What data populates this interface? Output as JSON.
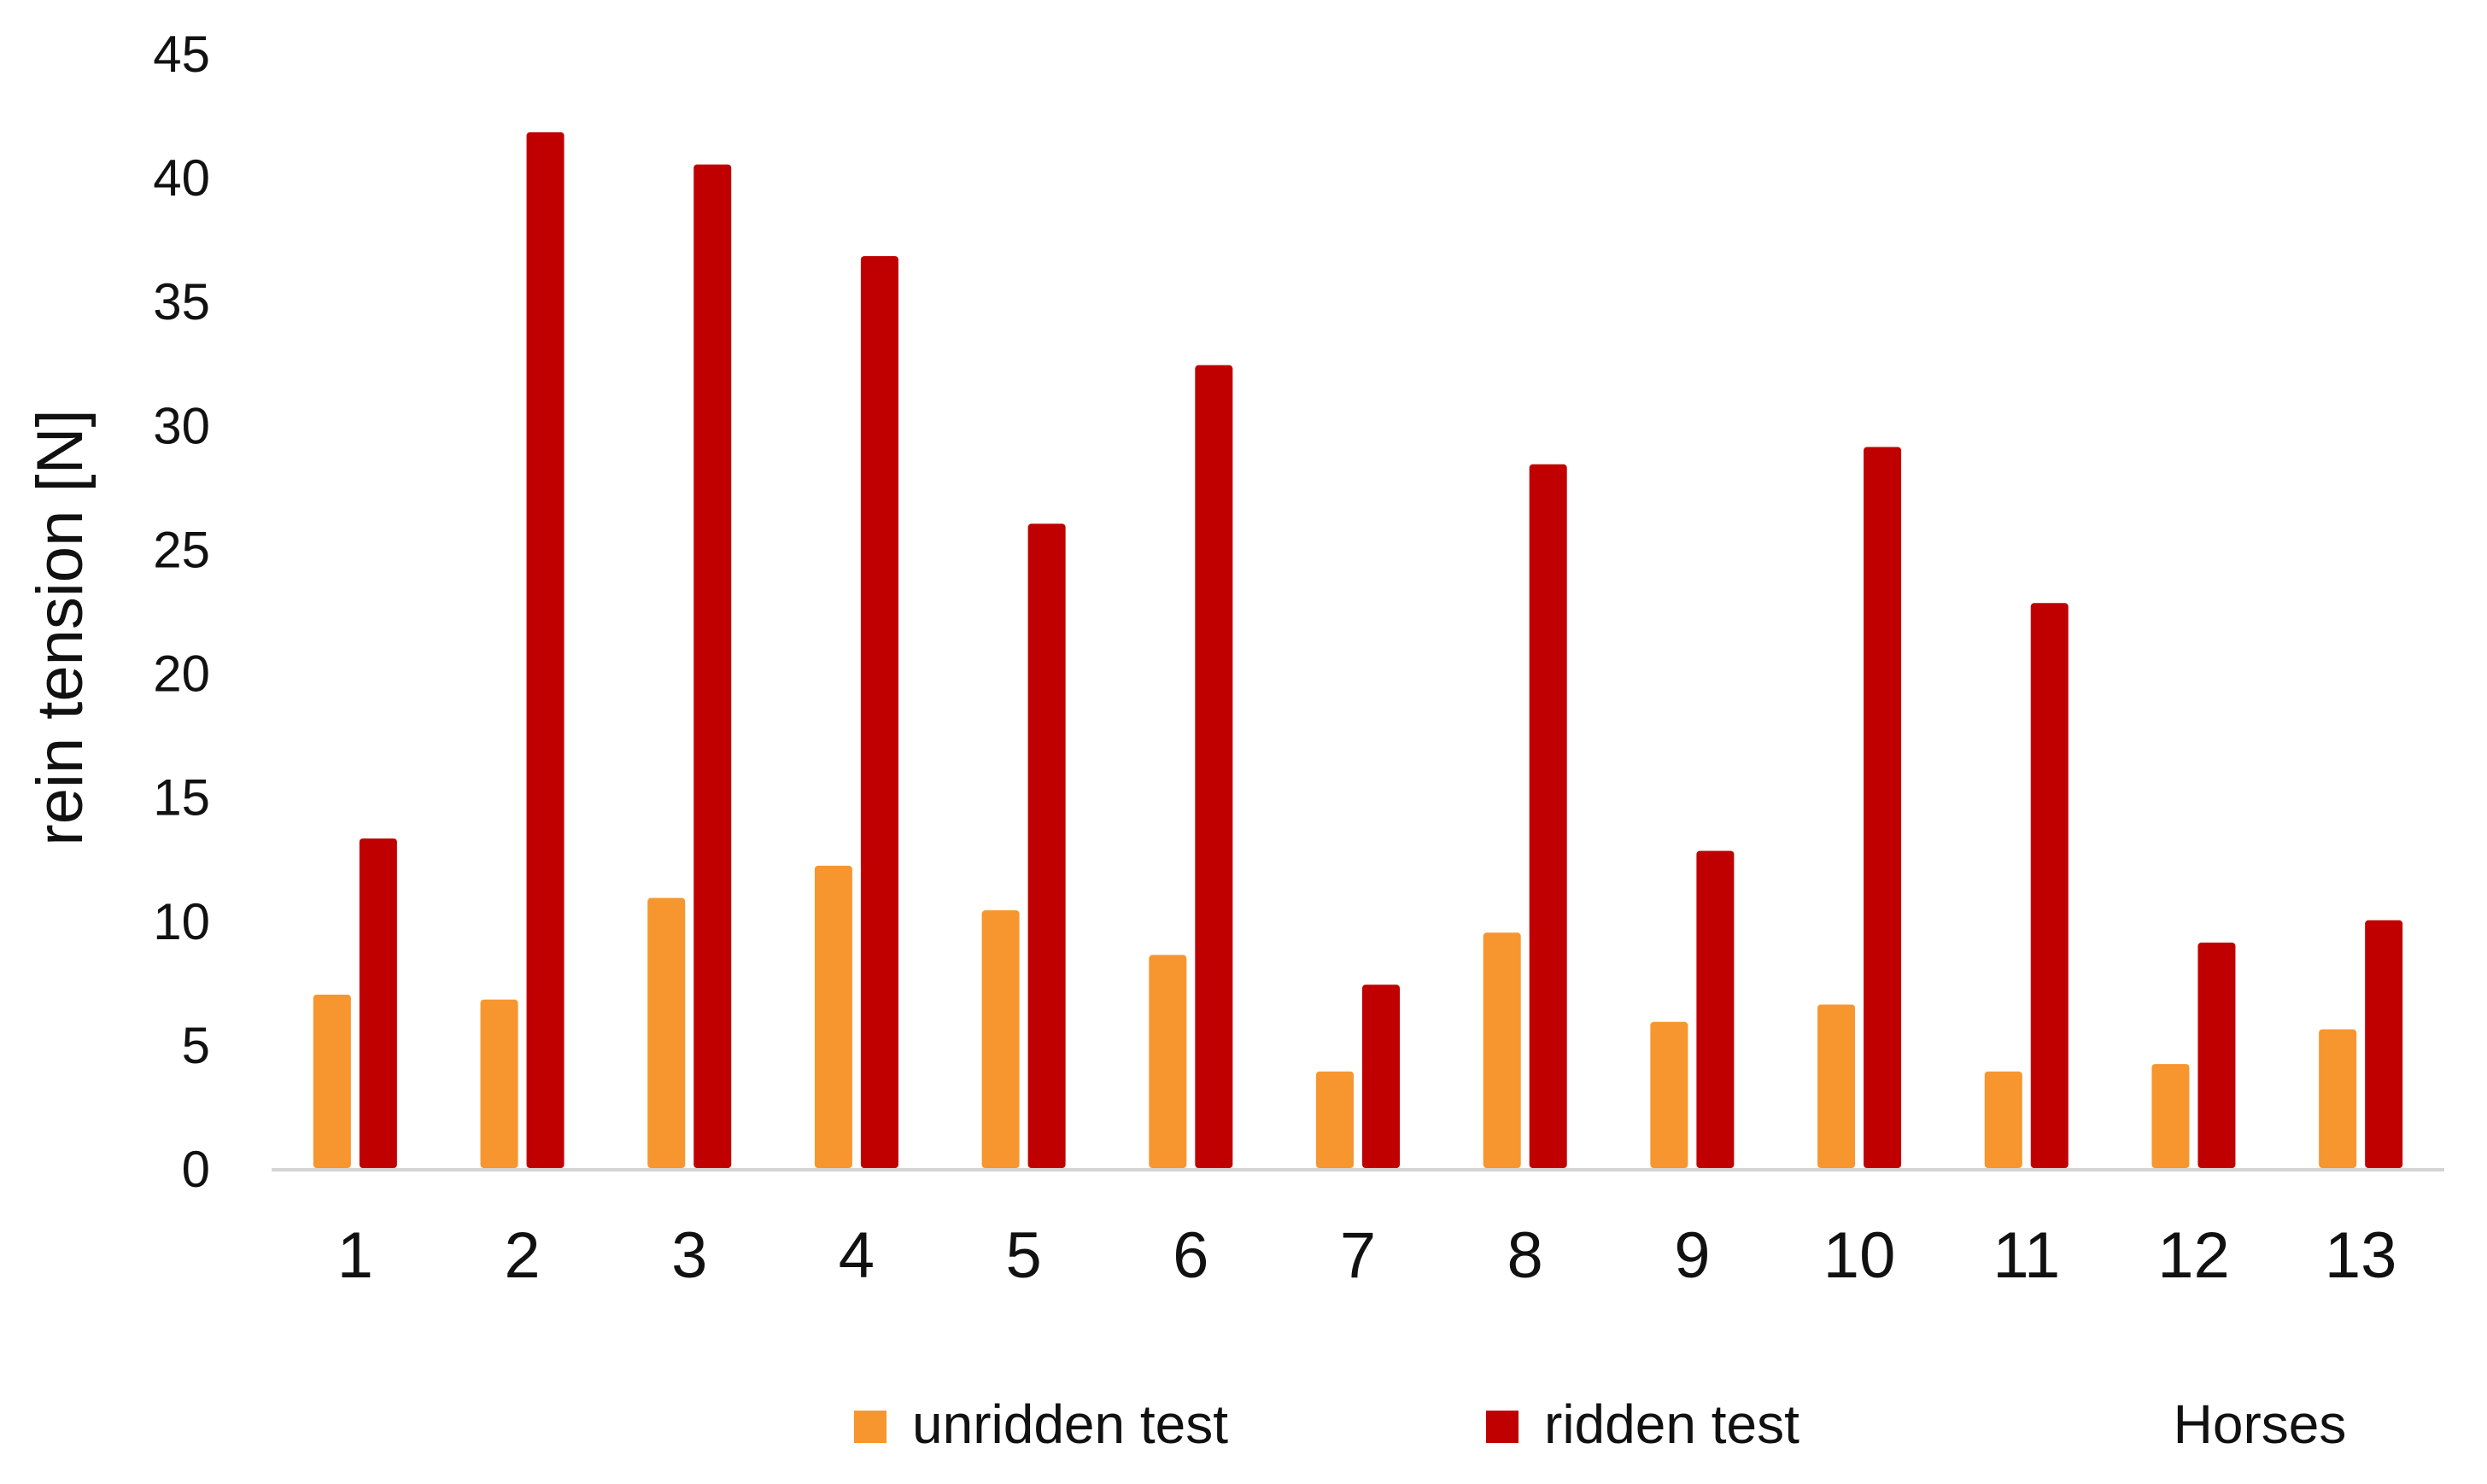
{
  "chart_data": {
    "type": "bar",
    "title": "",
    "xlabel": "Horses",
    "ylabel": "rein tension [N]",
    "ylim": [
      0,
      45
    ],
    "yticks": [
      0,
      5,
      10,
      15,
      20,
      25,
      30,
      35,
      40,
      45
    ],
    "categories": [
      "1",
      "2",
      "3",
      "4",
      "5",
      "6",
      "7",
      "8",
      "9",
      "10",
      "11",
      "12",
      "13"
    ],
    "grid": false,
    "legend_position": "bottom",
    "series": [
      {
        "name": "unridden test",
        "color": "#F7962E",
        "values": [
          7.0,
          6.8,
          10.9,
          12.2,
          10.4,
          8.6,
          3.9,
          9.5,
          5.9,
          6.6,
          3.9,
          4.2,
          5.6
        ]
      },
      {
        "name": "ridden test",
        "color": "#C00000",
        "values": [
          13.3,
          41.8,
          40.5,
          36.8,
          26.0,
          32.4,
          7.4,
          28.4,
          12.8,
          29.1,
          22.8,
          9.1,
          10.0
        ]
      }
    ]
  }
}
